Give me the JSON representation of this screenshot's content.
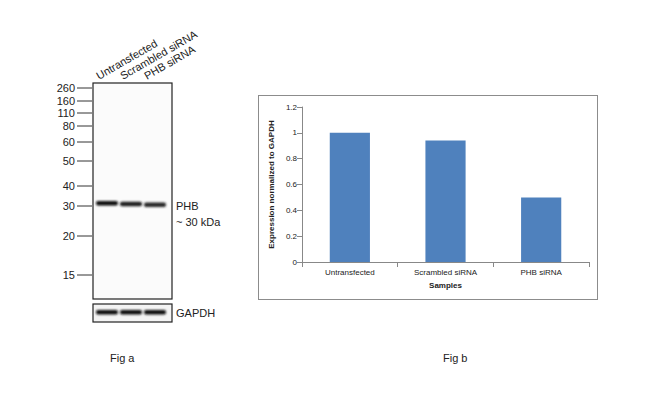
{
  "chart_data": {
    "type": "bar",
    "categories": [
      "Untransfected",
      "Scrambled siRNA",
      "PHB siRNA"
    ],
    "values": [
      1,
      0.94,
      0.5
    ],
    "color": "#4f81bd",
    "ylim": [
      0,
      1.2
    ],
    "yticks": [
      0,
      0.2,
      0.4,
      0.6,
      0.8,
      1,
      1.2
    ],
    "grid": false,
    "y_label": "Expression normalized to GAPDH",
    "x_label": "Samples",
    "caption": "Fig b"
  },
  "blot": {
    "lanes": [
      "Untransfected",
      "Scrambled siRNA",
      "PHB siRNA"
    ],
    "markers": [
      260,
      160,
      110,
      80,
      60,
      50,
      40,
      30,
      20,
      15
    ],
    "band_label": "PHB",
    "band_size": "~ 30 kDa",
    "loading_control": "GAPDH",
    "caption": "Fig a"
  }
}
